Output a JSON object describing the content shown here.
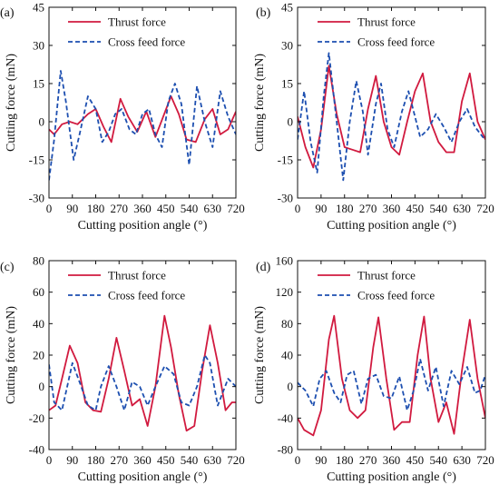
{
  "colors": {
    "thrust": "#d11a3f",
    "cross": "#1d4fb0",
    "axis": "#111111"
  },
  "chart_data": [
    {
      "type": "line",
      "panel_label": "(a)",
      "xlabel": "Cutting position angle (°)",
      "ylabel": "Cutting force (mN)",
      "xlim": [
        0,
        720
      ],
      "ylim": [
        -30,
        45
      ],
      "xticks": [
        0,
        90,
        180,
        270,
        360,
        450,
        540,
        630,
        720
      ],
      "yticks": [
        -30,
        -15,
        0,
        15,
        30,
        45
      ],
      "legend_position": "top-right",
      "series": [
        {
          "name": "Thrust force",
          "style": "solid",
          "x": [
            0,
            20,
            50,
            80,
            110,
            150,
            180,
            210,
            240,
            275,
            305,
            340,
            375,
            410,
            440,
            470,
            500,
            530,
            565,
            600,
            630,
            660,
            690,
            720
          ],
          "y": [
            -3,
            -5,
            -1,
            0,
            -1,
            3,
            5,
            -2,
            -8,
            9,
            2,
            -4,
            4,
            -6,
            2,
            10,
            3,
            -7,
            -8,
            1,
            5,
            -5,
            -3,
            4
          ]
        },
        {
          "name": "Cross feed force",
          "style": "dashed",
          "x": [
            0,
            20,
            45,
            65,
            95,
            120,
            150,
            180,
            205,
            230,
            255,
            280,
            310,
            335,
            360,
            385,
            410,
            435,
            460,
            485,
            510,
            540,
            570,
            600,
            630,
            660,
            690,
            720
          ],
          "y": [
            -23,
            -7,
            20,
            8,
            -15,
            -4,
            10,
            5,
            -8,
            -4,
            3,
            5,
            -3,
            -5,
            3,
            5,
            -5,
            -10,
            8,
            15,
            7,
            -17,
            14,
            0,
            -10,
            12,
            2,
            -5
          ]
        }
      ]
    },
    {
      "type": "line",
      "panel_label": "(b)",
      "xlabel": "Cutting position angle (°)",
      "ylabel": "Cutting force (mN)",
      "xlim": [
        0,
        720
      ],
      "ylim": [
        -30,
        45
      ],
      "xticks": [
        0,
        90,
        180,
        270,
        360,
        450,
        540,
        630,
        720
      ],
      "yticks": [
        -30,
        -15,
        0,
        15,
        30,
        45
      ],
      "legend_position": "top-right",
      "series": [
        {
          "name": "Thrust force",
          "style": "solid",
          "x": [
            0,
            30,
            60,
            90,
            120,
            150,
            180,
            210,
            240,
            270,
            300,
            330,
            360,
            390,
            420,
            450,
            480,
            510,
            540,
            570,
            600,
            630,
            660,
            690,
            720
          ],
          "y": [
            2,
            -10,
            -18,
            -3,
            22,
            3,
            -10,
            -11,
            -12,
            5,
            18,
            0,
            -10,
            -13,
            0,
            12,
            19,
            0,
            -8,
            -12,
            -12,
            8,
            19,
            0,
            -7
          ]
        },
        {
          "name": "Cross feed force",
          "style": "dashed",
          "x": [
            0,
            25,
            50,
            75,
            100,
            120,
            150,
            175,
            200,
            225,
            250,
            270,
            300,
            320,
            345,
            370,
            400,
            425,
            450,
            470,
            500,
            530,
            560,
            590,
            620,
            650,
            680,
            710,
            720
          ],
          "y": [
            -7,
            12,
            -8,
            -20,
            10,
            27,
            0,
            -23,
            0,
            16,
            4,
            -13,
            7,
            15,
            -3,
            -10,
            4,
            12,
            2,
            -6,
            -3,
            3,
            -2,
            -8,
            0,
            5,
            -2,
            -6,
            -7
          ]
        }
      ]
    },
    {
      "type": "line",
      "panel_label": "(c)",
      "xlabel": "Cutting position angle (°)",
      "ylabel": "Cutting force (mN)",
      "xlim": [
        0,
        720
      ],
      "ylim": [
        -40,
        80
      ],
      "xticks": [
        0,
        90,
        180,
        270,
        360,
        450,
        540,
        630,
        720
      ],
      "yticks": [
        -40,
        -20,
        0,
        20,
        40,
        60,
        80
      ],
      "legend_position": "top-right",
      "series": [
        {
          "name": "Thrust force",
          "style": "solid",
          "x": [
            0,
            25,
            50,
            80,
            110,
            140,
            170,
            200,
            230,
            260,
            290,
            320,
            350,
            380,
            410,
            445,
            470,
            500,
            530,
            560,
            590,
            620,
            650,
            680,
            705,
            720
          ],
          "y": [
            -15,
            -12,
            5,
            26,
            15,
            -10,
            -15,
            -16,
            5,
            31,
            10,
            -12,
            -8,
            -25,
            0,
            45,
            25,
            -5,
            -28,
            -25,
            10,
            39,
            15,
            -15,
            -10,
            -10
          ]
        },
        {
          "name": "Cross feed force",
          "style": "dashed",
          "x": [
            0,
            20,
            50,
            90,
            120,
            150,
            180,
            200,
            230,
            260,
            290,
            320,
            350,
            380,
            410,
            445,
            480,
            510,
            540,
            570,
            600,
            620,
            650,
            690,
            720
          ],
          "y": [
            14,
            -10,
            -15,
            15,
            2,
            -12,
            -15,
            0,
            13,
            0,
            -15,
            3,
            0,
            -12,
            0,
            13,
            8,
            -10,
            -12,
            0,
            20,
            15,
            -12,
            5,
            0
          ]
        }
      ]
    },
    {
      "type": "line",
      "panel_label": "(d)",
      "xlabel": "Cutting position angle (°)",
      "ylabel": "Cutting force (mN)",
      "xlim": [
        0,
        720
      ],
      "ylim": [
        -80,
        160
      ],
      "xticks": [
        0,
        90,
        180,
        270,
        360,
        450,
        540,
        630,
        720
      ],
      "yticks": [
        -80,
        -40,
        0,
        40,
        80,
        120,
        160
      ],
      "legend_position": "top-right",
      "series": [
        {
          "name": "Thrust force",
          "style": "solid",
          "x": [
            0,
            25,
            60,
            90,
            120,
            140,
            170,
            200,
            230,
            260,
            290,
            310,
            340,
            370,
            400,
            430,
            460,
            485,
            510,
            540,
            570,
            600,
            630,
            660,
            690,
            720
          ],
          "y": [
            -40,
            -55,
            -62,
            -30,
            60,
            90,
            10,
            -30,
            -40,
            -30,
            50,
            88,
            10,
            -55,
            -45,
            -45,
            40,
            89,
            10,
            -45,
            -20,
            -60,
            20,
            85,
            10,
            -40
          ]
        },
        {
          "name": "Cross feed force",
          "style": "dashed",
          "x": [
            0,
            30,
            60,
            85,
            110,
            140,
            165,
            190,
            215,
            245,
            270,
            300,
            330,
            360,
            390,
            420,
            445,
            470,
            500,
            530,
            560,
            590,
            620,
            650,
            680,
            700,
            720
          ],
          "y": [
            5,
            -5,
            -25,
            10,
            20,
            -8,
            -20,
            15,
            20,
            -22,
            10,
            15,
            -12,
            -15,
            13,
            -30,
            -5,
            35,
            -5,
            25,
            -25,
            20,
            3,
            25,
            -8,
            -5,
            15
          ]
        }
      ]
    }
  ]
}
